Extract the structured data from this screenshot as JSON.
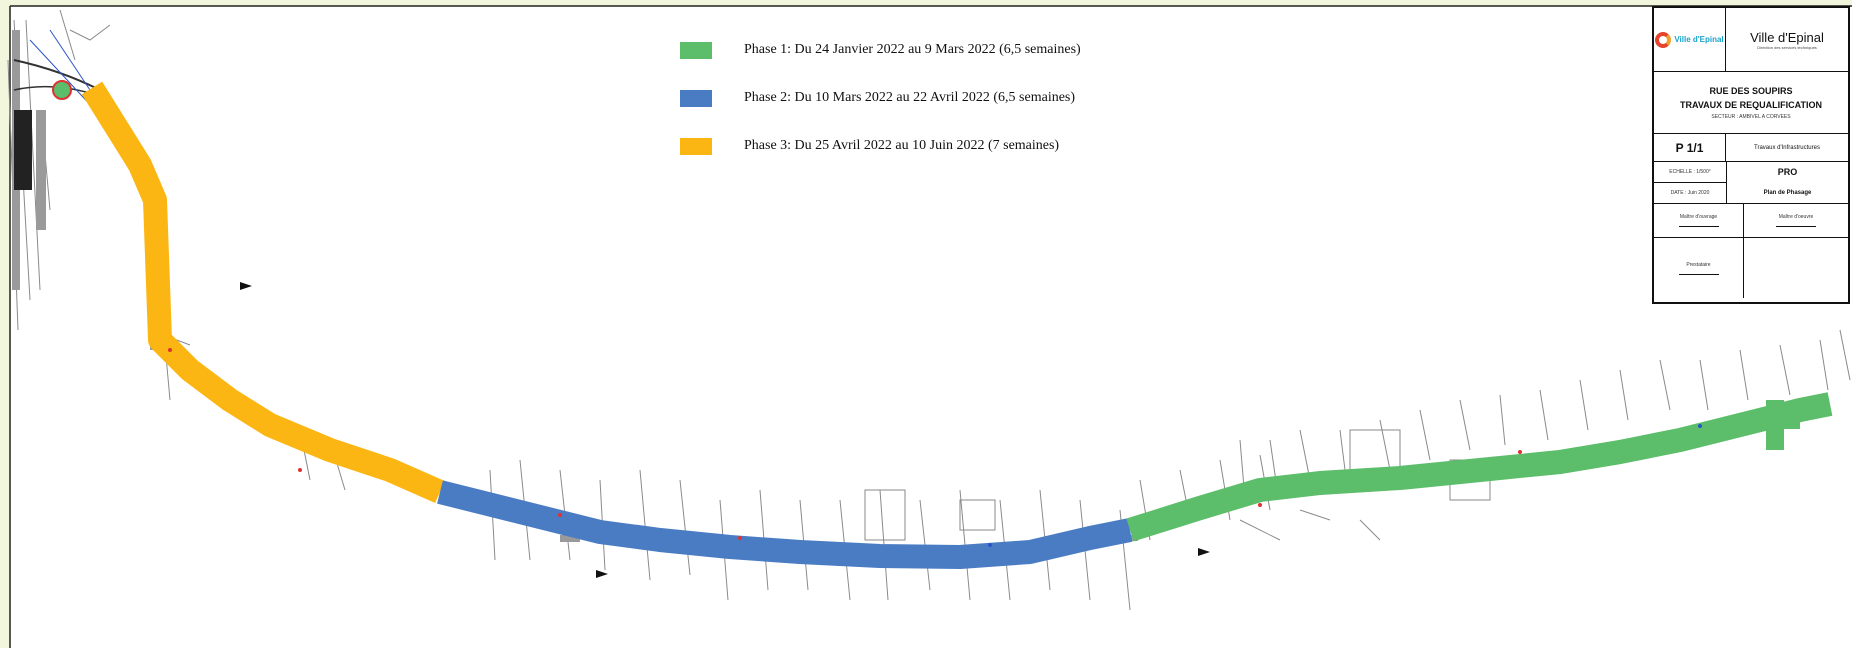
{
  "legend": {
    "items": [
      {
        "label": "Phase 1: Du 24 Janvier 2022 au 9 Mars 2022 (6,5 semaines)",
        "color": "#5cbd6a"
      },
      {
        "label": "Phase 2: Du 10 Mars 2022 au 22 Avril 2022 (6,5 semaines)",
        "color": "#4a7cc4"
      },
      {
        "label": "Phase 3: Du 25 Avril 2022 au 10 Juin 2022 (7 semaines)",
        "color": "#fbb614"
      }
    ]
  },
  "cartouche": {
    "logo_text": "Ville d'Epinal",
    "town": "Ville d'Epinal",
    "town_sub": "Direction des services techniques",
    "project_line1": "RUE DES SOUPIRS",
    "project_line2": "TRAVAUX DE REQUALIFICATION",
    "project_line3": "SECTEUR : AMBIVEL A CORVEES",
    "page": "P 1/1",
    "subject": "Travaux d'Infrastructures",
    "scale": "ECHELLE : 1/500°",
    "phase_code": "PRO",
    "date": "DATE : Juin 2020",
    "plan_title": "Plan de Phasage",
    "sig1": "Maître d'ouvrage",
    "sig2": "Maître d'oeuvre",
    "sig3": "Prestataire"
  },
  "colors": {
    "phase1": "#5cbd6a",
    "phase2": "#4a7cc4",
    "phase3": "#fbb614",
    "frame_background": "#f2f6dc"
  }
}
